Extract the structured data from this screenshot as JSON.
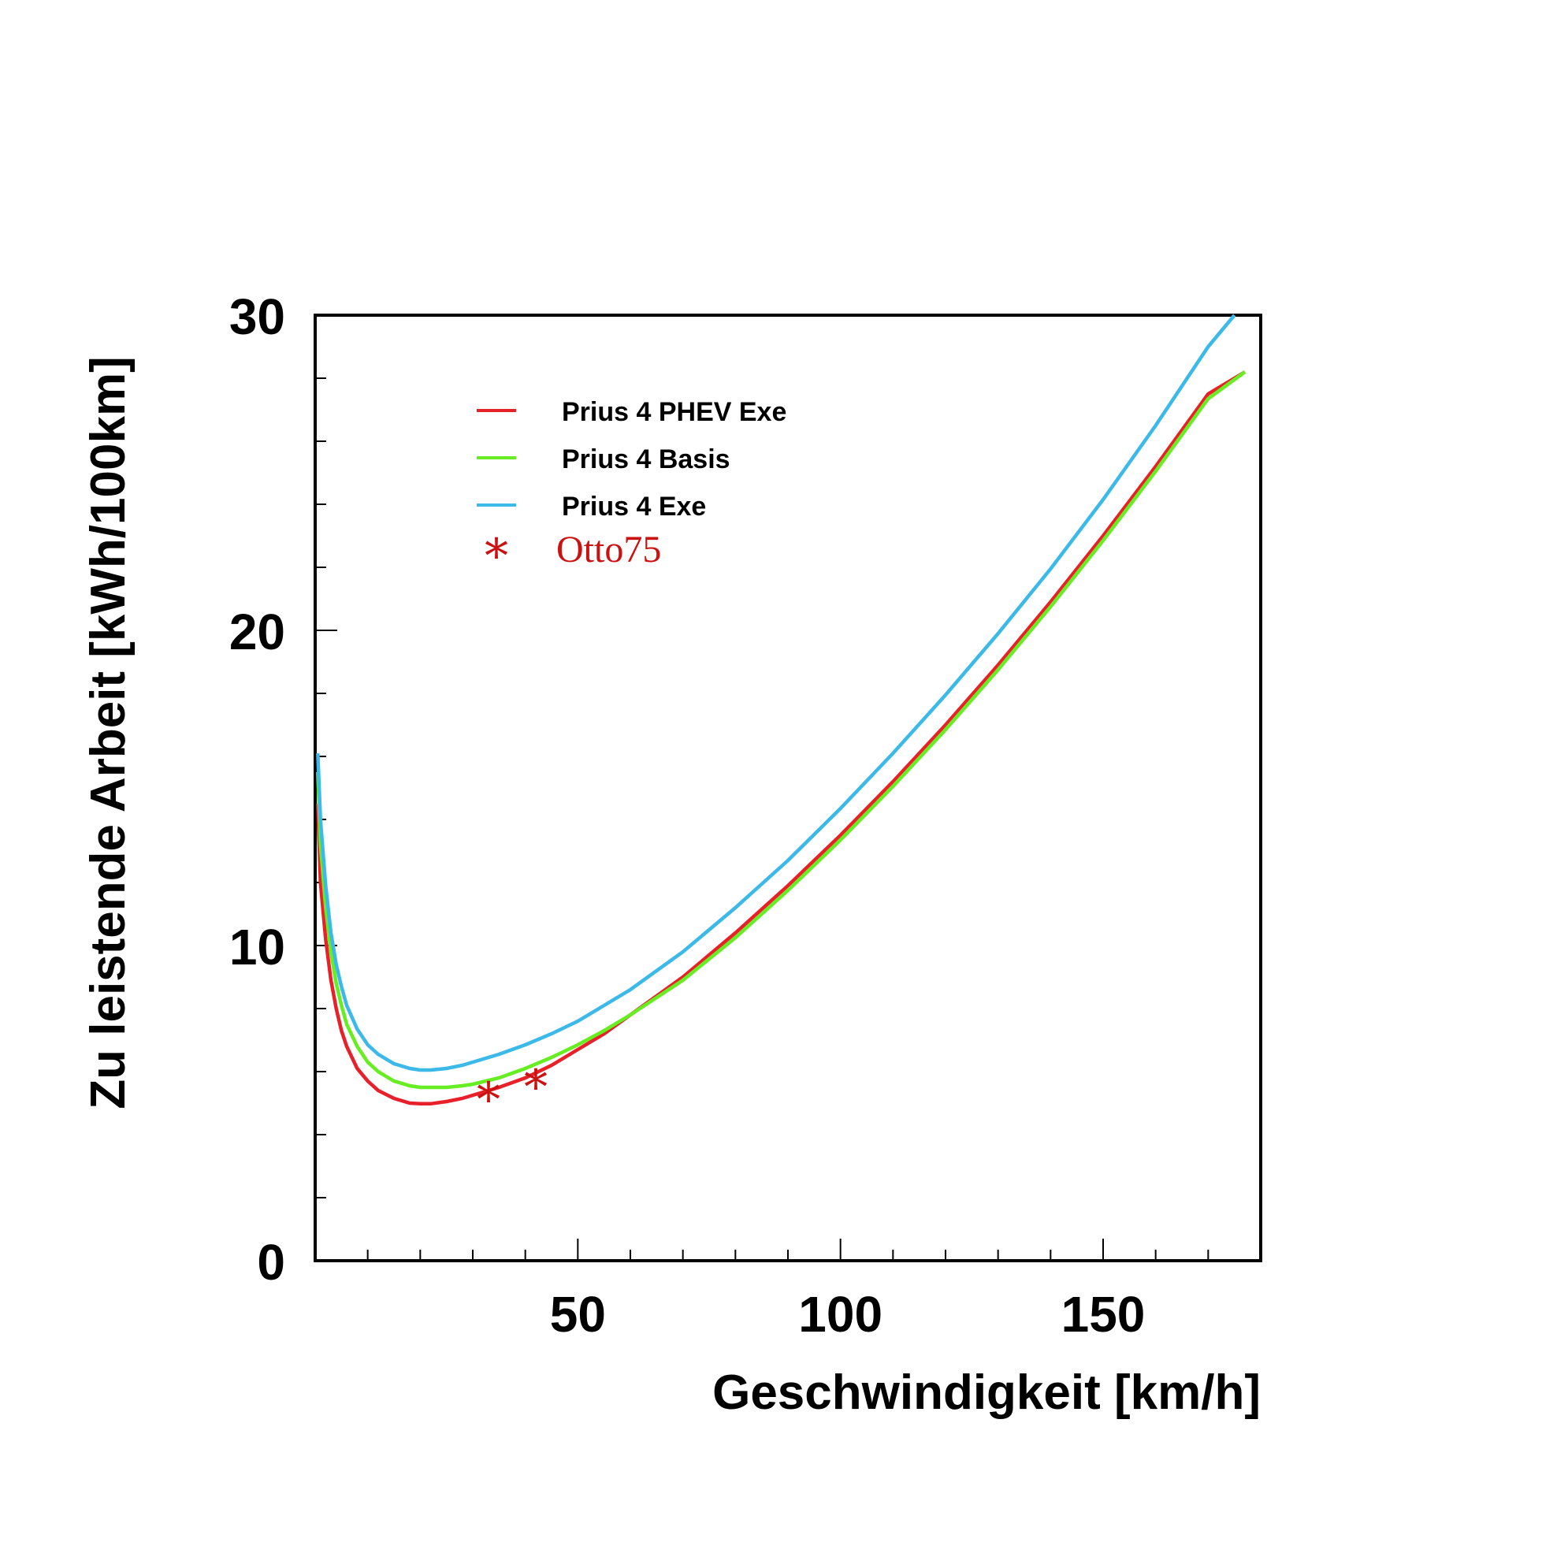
{
  "chart_data": {
    "type": "line",
    "xlabel": "Geschwindigkeit [km/h]",
    "ylabel": "Zu leistende Arbeit [kWh/100km]",
    "xlim": [
      0,
      180
    ],
    "ylim": [
      0,
      30
    ],
    "x_ticks": [
      50,
      100,
      150
    ],
    "x_tick_labels": [
      "50",
      "100",
      "150"
    ],
    "y_ticks": [
      0,
      10,
      20,
      30
    ],
    "y_tick_labels": [
      "0",
      "10",
      "20",
      "30"
    ],
    "grid": false,
    "legend_position": "top-left",
    "series": [
      {
        "name": "Prius 4 PHEV Exe",
        "color": "#e8202a",
        "x": [
          0.5,
          1,
          2,
          3,
          4,
          5,
          6,
          8,
          10,
          12,
          15,
          18,
          20,
          22,
          25,
          28,
          30,
          35,
          40,
          45,
          50,
          55,
          60,
          70,
          80,
          90,
          100,
          110,
          120,
          130,
          140,
          150,
          160,
          170,
          177
        ],
        "y": [
          14.5,
          12.0,
          10.2,
          8.9,
          8.0,
          7.3,
          6.8,
          6.1,
          5.7,
          5.4,
          5.15,
          5.0,
          4.98,
          4.98,
          5.05,
          5.15,
          5.25,
          5.5,
          5.8,
          6.2,
          6.7,
          7.2,
          7.8,
          9.0,
          10.4,
          11.9,
          13.5,
          15.2,
          17.0,
          18.9,
          20.9,
          23.0,
          25.2,
          27.5,
          28.2
        ]
      },
      {
        "name": "Prius 4 Basis",
        "color": "#66ee22",
        "x": [
          0.5,
          1,
          2,
          3,
          4,
          5,
          6,
          8,
          10,
          12,
          15,
          18,
          20,
          22,
          25,
          28,
          30,
          35,
          40,
          45,
          50,
          55,
          60,
          70,
          80,
          90,
          100,
          110,
          120,
          130,
          140,
          150,
          160,
          170,
          177
        ],
        "y": [
          15.5,
          13.2,
          11.2,
          9.8,
          8.8,
          8.1,
          7.5,
          6.8,
          6.3,
          6.0,
          5.7,
          5.55,
          5.5,
          5.5,
          5.5,
          5.55,
          5.6,
          5.8,
          6.1,
          6.45,
          6.85,
          7.3,
          7.8,
          8.9,
          10.25,
          11.75,
          13.35,
          15.05,
          16.85,
          18.75,
          20.75,
          22.85,
          25.05,
          27.35,
          28.2
        ]
      },
      {
        "name": "Prius 4 Exe",
        "color": "#3bb9e8",
        "x": [
          0.5,
          1,
          2,
          3,
          4,
          5,
          6,
          8,
          10,
          12,
          15,
          18,
          20,
          22,
          25,
          28,
          30,
          35,
          40,
          45,
          50,
          55,
          60,
          70,
          80,
          90,
          100,
          110,
          120,
          130,
          140,
          150,
          160,
          170,
          175
        ],
        "y": [
          16.1,
          14.0,
          11.9,
          10.4,
          9.4,
          8.7,
          8.1,
          7.35,
          6.85,
          6.55,
          6.25,
          6.1,
          6.05,
          6.05,
          6.1,
          6.2,
          6.3,
          6.55,
          6.85,
          7.2,
          7.6,
          8.1,
          8.6,
          9.8,
          11.2,
          12.7,
          14.35,
          16.1,
          17.95,
          19.9,
          21.95,
          24.15,
          26.5,
          29.0,
          30.0
        ]
      }
    ],
    "markers": {
      "name": "Otto75",
      "color": "#cc1111",
      "symbol": "*",
      "points": [
        {
          "x": 33,
          "y": 5.35
        },
        {
          "x": 42,
          "y": 5.75
        }
      ]
    }
  }
}
